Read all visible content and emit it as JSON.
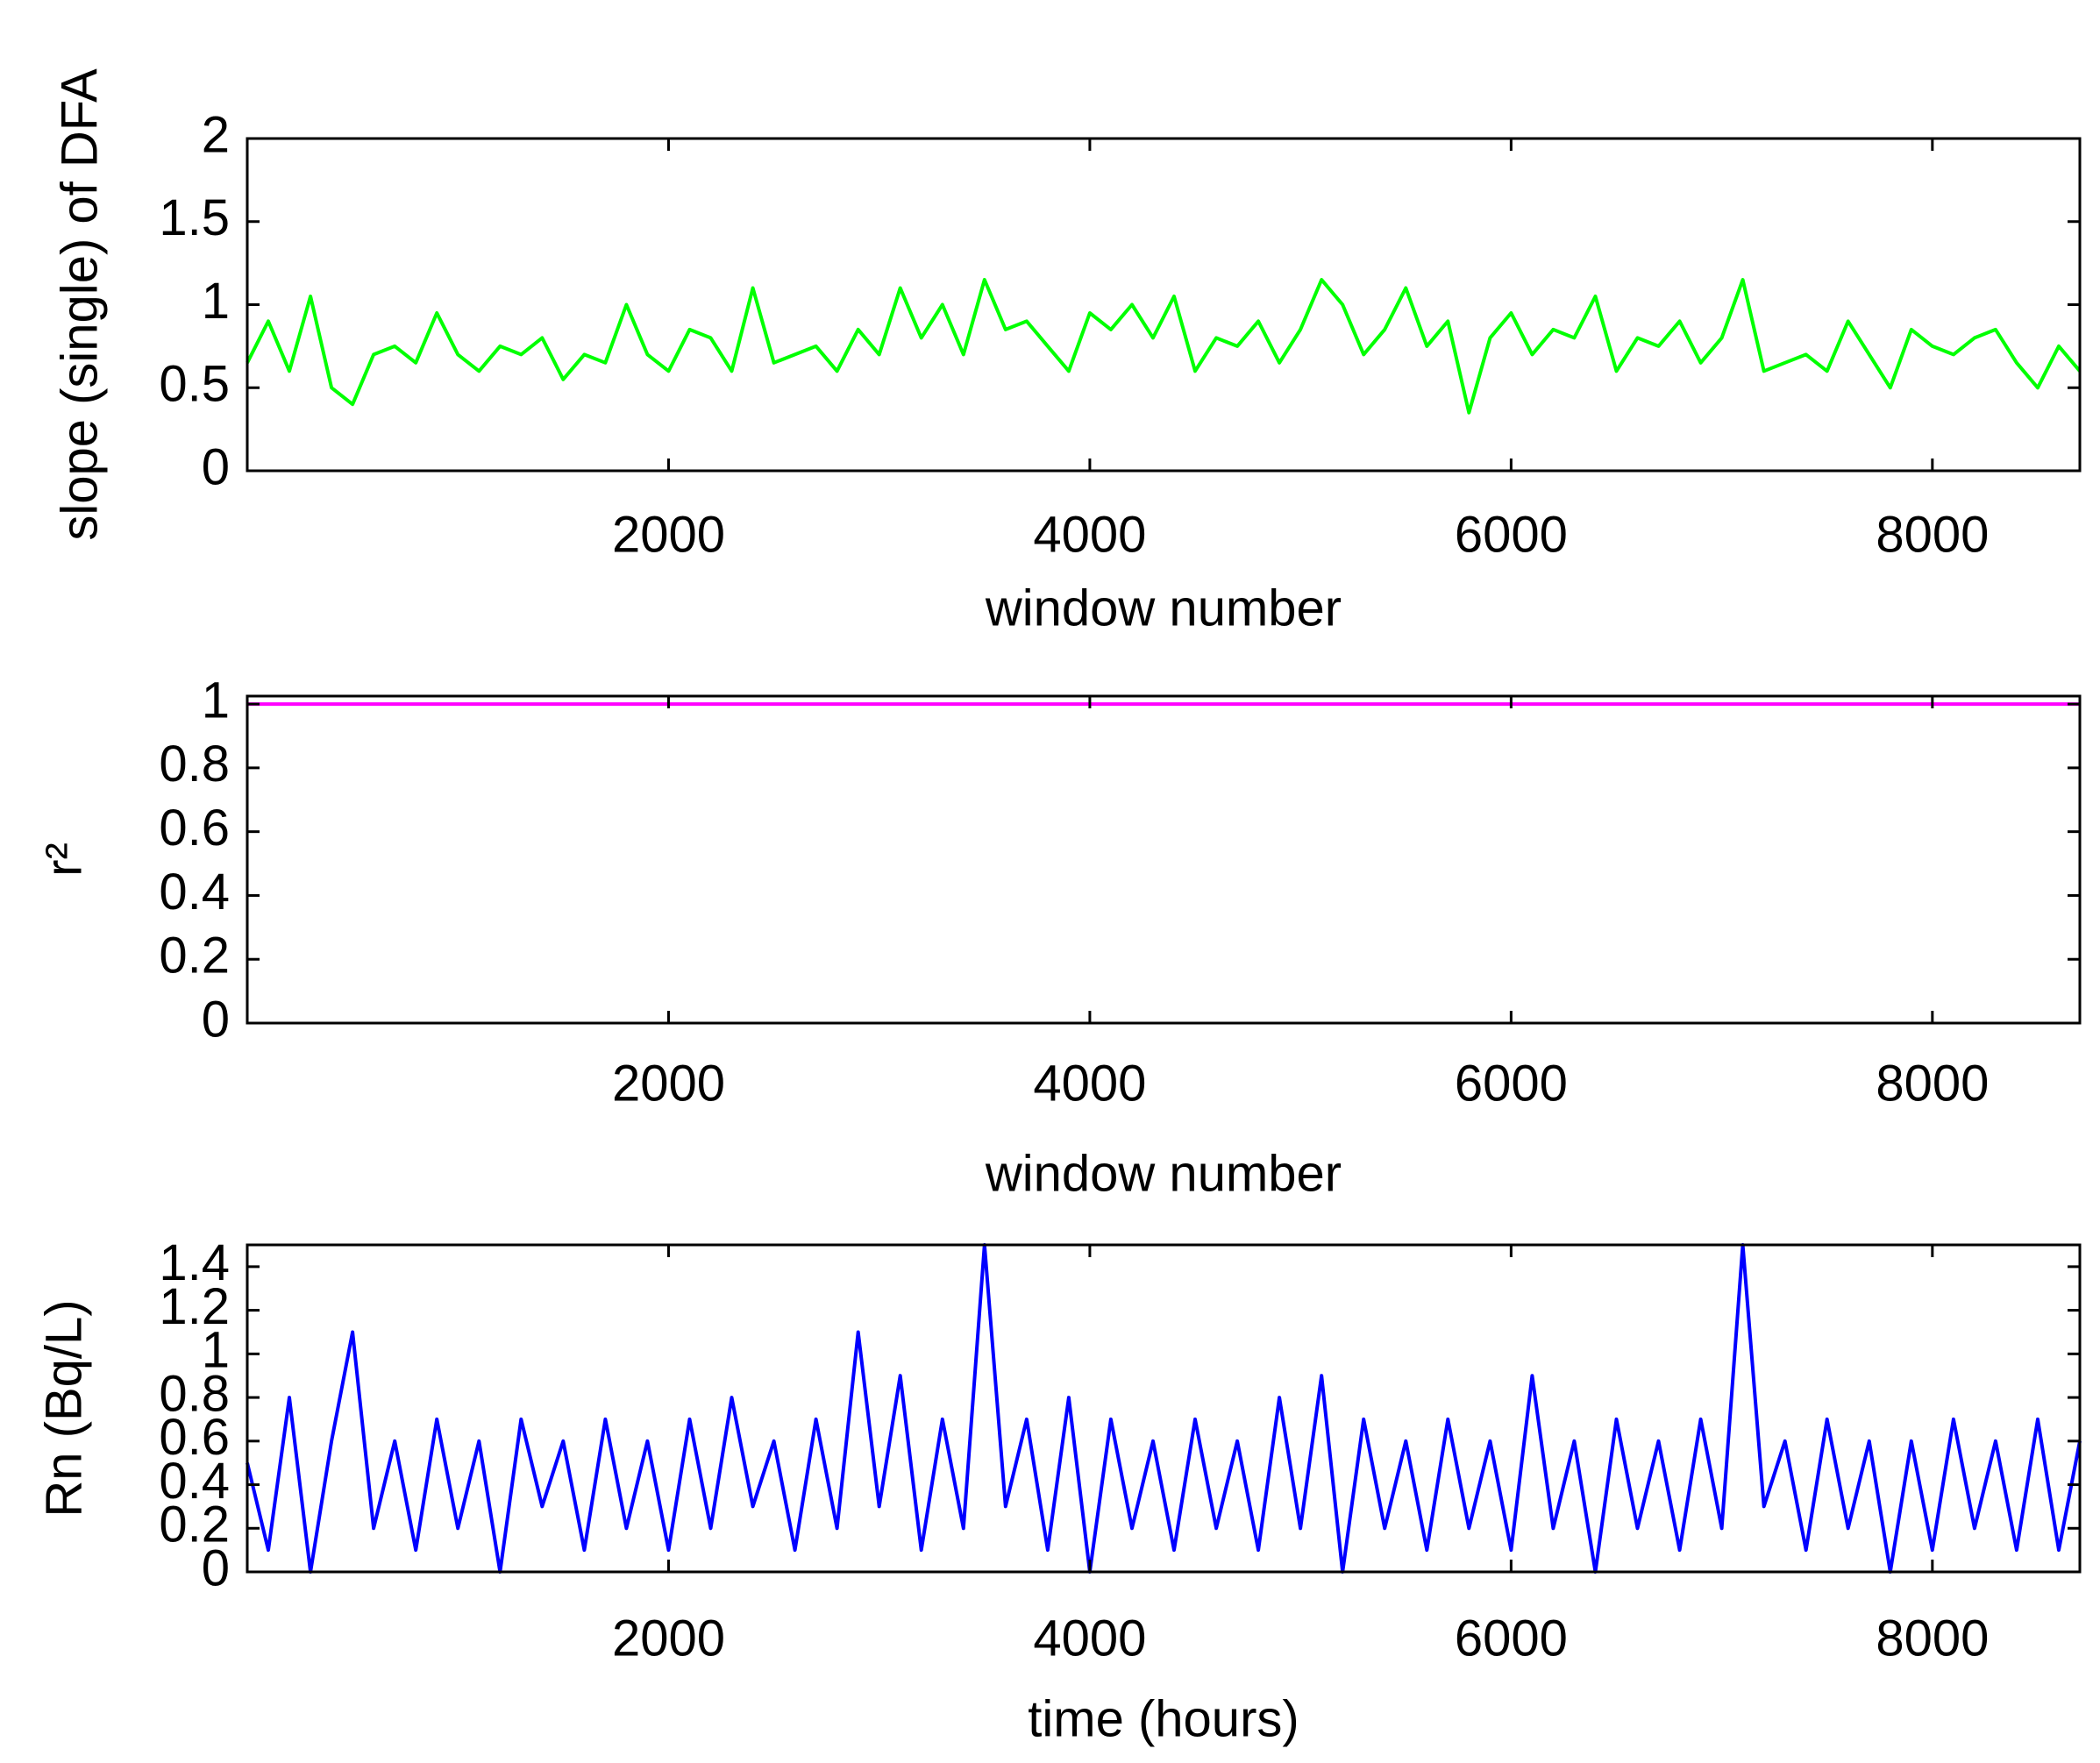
{
  "chart_data": [
    {
      "type": "line",
      "xlabel": "window number",
      "ylabel": "slope (single) of DFA",
      "color": "#00ff00",
      "x": [
        0,
        100,
        200,
        300,
        400,
        500,
        600,
        700,
        800,
        900,
        1000,
        1100,
        1200,
        1300,
        1400,
        1500,
        1600,
        1700,
        1800,
        1900,
        2000,
        2100,
        2200,
        2300,
        2400,
        2500,
        2600,
        2700,
        2800,
        2900,
        3000,
        3100,
        3200,
        3300,
        3400,
        3500,
        3600,
        3700,
        3800,
        3900,
        4000,
        4100,
        4200,
        4300,
        4400,
        4500,
        4600,
        4700,
        4800,
        4900,
        5000,
        5100,
        5200,
        5300,
        5400,
        5500,
        5600,
        5700,
        5800,
        5900,
        6000,
        6100,
        6200,
        6300,
        6400,
        6500,
        6600,
        6700,
        6800,
        6900,
        7000,
        7100,
        7200,
        7300,
        7400,
        7500,
        7600,
        7700,
        7800,
        7900,
        8000,
        8100,
        8200,
        8300,
        8400,
        8500,
        8600,
        8700
      ],
      "values": [
        0.65,
        0.9,
        0.6,
        1.05,
        0.5,
        0.4,
        0.7,
        0.75,
        0.65,
        0.95,
        0.7,
        0.6,
        0.75,
        0.7,
        0.8,
        0.55,
        0.7,
        0.65,
        1.0,
        0.7,
        0.6,
        0.85,
        0.8,
        0.6,
        1.1,
        0.65,
        0.7,
        0.75,
        0.6,
        0.85,
        0.7,
        1.1,
        0.8,
        1.0,
        0.7,
        1.15,
        0.85,
        0.9,
        0.75,
        0.6,
        0.95,
        0.85,
        1.0,
        0.8,
        1.05,
        0.6,
        0.8,
        0.75,
        0.9,
        0.65,
        0.85,
        1.15,
        1.0,
        0.7,
        0.85,
        1.1,
        0.75,
        0.9,
        0.35,
        0.8,
        0.95,
        0.7,
        0.85,
        0.8,
        1.05,
        0.6,
        0.8,
        0.75,
        0.9,
        0.65,
        0.8,
        1.15,
        0.6,
        0.65,
        0.7,
        0.6,
        0.9,
        0.7,
        0.5,
        0.85,
        0.75,
        0.7,
        0.8,
        0.85,
        0.65,
        0.5,
        0.75,
        0.6
      ],
      "xlim": [
        0,
        8700
      ],
      "ylim": [
        0,
        2
      ],
      "xticks": [
        2000,
        4000,
        6000,
        8000
      ],
      "yticks": [
        0,
        0.5,
        1,
        1.5,
        2
      ]
    },
    {
      "type": "line",
      "xlabel": "window number",
      "ylabel": "r²",
      "color": "#ff00ff",
      "x": [
        0,
        8700
      ],
      "values": [
        1,
        1
      ],
      "xlim": [
        0,
        8700
      ],
      "ylim": [
        0,
        1.025
      ],
      "xticks": [
        2000,
        4000,
        6000,
        8000
      ],
      "yticks": [
        0,
        0.2,
        0.4,
        0.6,
        0.8,
        1
      ]
    },
    {
      "type": "line",
      "xlabel": "time (hours)",
      "ylabel": "Rn (Bq/L)",
      "color": "#0000ff",
      "x": [
        0,
        100,
        200,
        300,
        400,
        500,
        600,
        700,
        800,
        900,
        1000,
        1100,
        1200,
        1300,
        1400,
        1500,
        1600,
        1700,
        1800,
        1900,
        2000,
        2100,
        2200,
        2300,
        2400,
        2500,
        2600,
        2700,
        2800,
        2900,
        3000,
        3100,
        3200,
        3300,
        3400,
        3500,
        3600,
        3700,
        3800,
        3900,
        4000,
        4100,
        4200,
        4300,
        4400,
        4500,
        4600,
        4700,
        4800,
        4900,
        5000,
        5100,
        5200,
        5300,
        5400,
        5500,
        5600,
        5700,
        5800,
        5900,
        6000,
        6100,
        6200,
        6300,
        6400,
        6500,
        6600,
        6700,
        6800,
        6900,
        7000,
        7100,
        7200,
        7300,
        7400,
        7500,
        7600,
        7700,
        7800,
        7900,
        8000,
        8100,
        8200,
        8300,
        8400,
        8500,
        8600,
        8700
      ],
      "values": [
        0.5,
        0.1,
        0.8,
        0,
        0.6,
        1.1,
        0.2,
        0.6,
        0.1,
        0.7,
        0.2,
        0.6,
        0,
        0.7,
        0.3,
        0.6,
        0.1,
        0.7,
        0.2,
        0.6,
        0.1,
        0.7,
        0.2,
        0.8,
        0.3,
        0.6,
        0.1,
        0.7,
        0.2,
        1.1,
        0.3,
        0.9,
        0.1,
        0.7,
        0.2,
        1.5,
        0.3,
        0.7,
        0.1,
        0.8,
        0,
        0.7,
        0.2,
        0.6,
        0.1,
        0.7,
        0.2,
        0.6,
        0.1,
        0.8,
        0.2,
        0.9,
        0,
        0.7,
        0.2,
        0.6,
        0.1,
        0.7,
        0.2,
        0.6,
        0.1,
        0.9,
        0.2,
        0.6,
        0,
        0.7,
        0.2,
        0.6,
        0.1,
        0.7,
        0.2,
        1.5,
        0.3,
        0.6,
        0.1,
        0.7,
        0.2,
        0.6,
        0,
        0.6,
        0.1,
        0.7,
        0.2,
        0.6,
        0.1,
        0.7,
        0.1,
        0.6
      ],
      "xlim": [
        0,
        8700
      ],
      "ylim": [
        0,
        1.5
      ],
      "xticks": [
        2000,
        4000,
        6000,
        8000
      ],
      "yticks": [
        0,
        0.2,
        0.4,
        0.6,
        0.8,
        1,
        1.2,
        1.4
      ]
    }
  ]
}
